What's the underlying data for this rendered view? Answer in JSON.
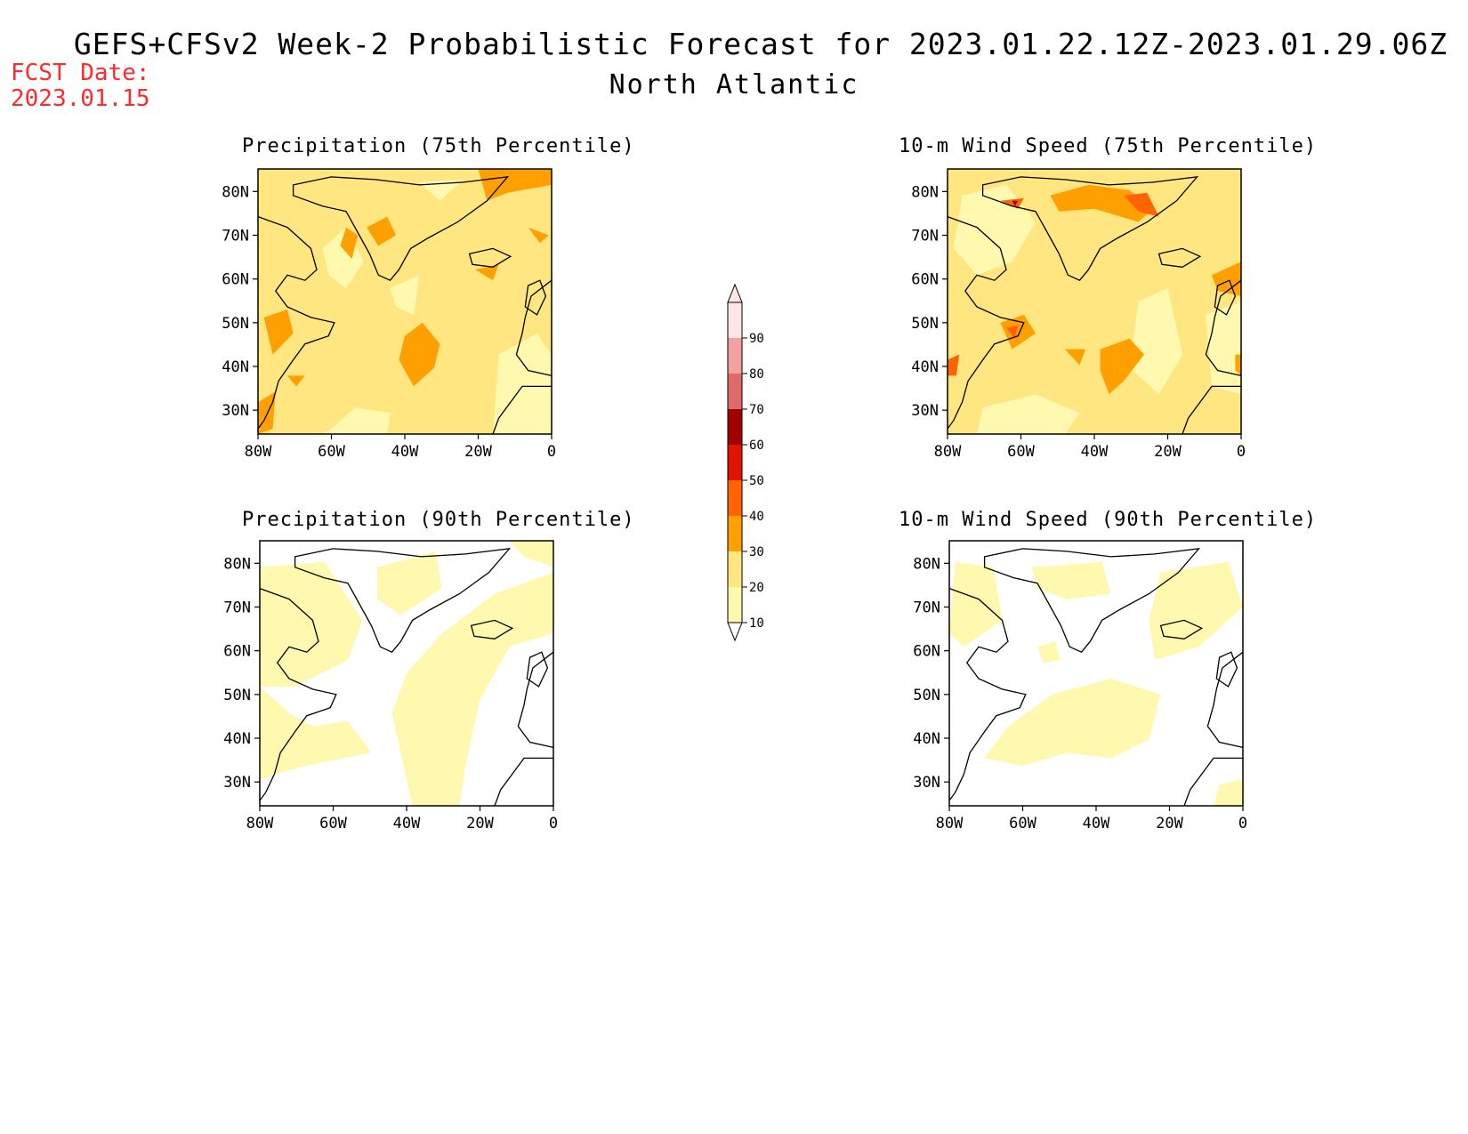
{
  "header": {
    "title": "GEFS+CFSv2 Week-2 Probabilistic Forecast for 2023.01.22.12Z-2023.01.29.06Z",
    "region": "North Atlantic",
    "fcst_label": "FCST Date:",
    "fcst_value": "2023.01.15"
  },
  "panels": [
    {
      "title": "Precipitation (75th Percentile)",
      "fill": "#ffe680",
      "blobs": "p75"
    },
    {
      "title": "10-m Wind Speed (75th Percentile)",
      "fill": "#ffe680",
      "blobs": "w75"
    },
    {
      "title": "Precipitation (90th Percentile)",
      "fill": "#ffffff",
      "blobs": "p90"
    },
    {
      "title": "10-m Wind Speed (90th Percentile)",
      "fill": "#ffffff",
      "blobs": "w90"
    }
  ],
  "axes": {
    "lat_ticks": [
      "80N",
      "70N",
      "60N",
      "50N",
      "40N",
      "30N"
    ],
    "lon_ticks": [
      "80W",
      "60W",
      "40W",
      "20W",
      "0"
    ]
  },
  "colorbar": {
    "levels": [
      "10",
      "20",
      "30",
      "40",
      "50",
      "60",
      "70",
      "80",
      "90"
    ],
    "colors": [
      "#fff9b0",
      "#ffe680",
      "#ffa000",
      "#ff6400",
      "#e01400",
      "#a00000",
      "#e06a6a",
      "#f2a0a0",
      "#ffe6e6"
    ]
  }
}
